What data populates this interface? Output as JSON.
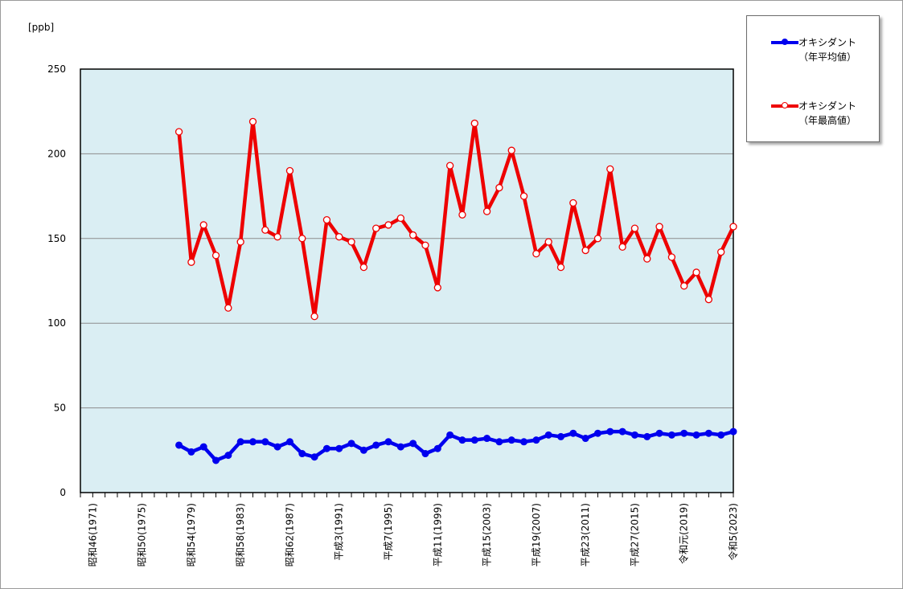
{
  "chart_data": {
    "type": "line",
    "unit_label": "[ppb]",
    "ylim": [
      0,
      250
    ],
    "y_ticks": [
      "0",
      "50",
      "100",
      "150",
      "200",
      "250"
    ],
    "grid": "horizontal",
    "legend_position": "right",
    "x_start_year": 1971,
    "x_end_year": 2023,
    "x_tick_labels": [
      {
        "year": 1971,
        "label": "昭和46(1971)"
      },
      {
        "year": 1975,
        "label": "昭和50(1975)"
      },
      {
        "year": 1979,
        "label": "昭和54(1979)"
      },
      {
        "year": 1983,
        "label": "昭和58(1983)"
      },
      {
        "year": 1987,
        "label": "昭和62(1987)"
      },
      {
        "year": 1991,
        "label": "平成3(1991)"
      },
      {
        "year": 1995,
        "label": "平成7(1995)"
      },
      {
        "year": 1999,
        "label": "平成11(1999)"
      },
      {
        "year": 2003,
        "label": "平成15(2003)"
      },
      {
        "year": 2007,
        "label": "平成19(2007)"
      },
      {
        "year": 2011,
        "label": "平成23(2011)"
      },
      {
        "year": 2015,
        "label": "平成27(2015)"
      },
      {
        "year": 2019,
        "label": "令和元(2019)"
      },
      {
        "year": 2023,
        "label": "令和5(2023)"
      }
    ],
    "series": [
      {
        "name": "オキシダント\n（年平均値）",
        "color": "#0000ee",
        "marker": "filled",
        "x": [
          1978,
          1979,
          1980,
          1981,
          1982,
          1983,
          1984,
          1985,
          1986,
          1987,
          1988,
          1989,
          1990,
          1991,
          1992,
          1993,
          1994,
          1995,
          1996,
          1997,
          1998,
          1999,
          2000,
          2001,
          2002,
          2003,
          2004,
          2005,
          2006,
          2007,
          2008,
          2009,
          2010,
          2011,
          2012,
          2013,
          2014,
          2015,
          2016,
          2017,
          2018,
          2019,
          2020,
          2021,
          2022,
          2023
        ],
        "values": [
          28,
          24,
          27,
          19,
          22,
          30,
          30,
          30,
          27,
          30,
          23,
          21,
          26,
          26,
          29,
          25,
          28,
          30,
          27,
          29,
          23,
          26,
          34,
          31,
          31,
          32,
          30,
          31,
          30,
          31,
          34,
          33,
          35,
          32,
          35,
          36,
          36,
          34,
          33,
          35,
          34,
          35,
          34,
          35,
          34,
          36
        ]
      },
      {
        "name": "オキシダント\n（年最高値）",
        "color": "#ee0000",
        "marker": "hollow",
        "x": [
          1978,
          1979,
          1980,
          1981,
          1982,
          1983,
          1984,
          1985,
          1986,
          1987,
          1988,
          1989,
          1990,
          1991,
          1992,
          1993,
          1994,
          1995,
          1996,
          1997,
          1998,
          1999,
          2000,
          2001,
          2002,
          2003,
          2004,
          2005,
          2006,
          2007,
          2008,
          2009,
          2010,
          2011,
          2012,
          2013,
          2014,
          2015,
          2016,
          2017,
          2018,
          2019,
          2020,
          2021,
          2022,
          2023
        ],
        "values": [
          213,
          136,
          158,
          140,
          109,
          148,
          219,
          155,
          151,
          190,
          150,
          104,
          161,
          151,
          148,
          133,
          156,
          158,
          162,
          152,
          146,
          121,
          193,
          164,
          218,
          166,
          180,
          202,
          175,
          141,
          148,
          133,
          171,
          143,
          150,
          191,
          145,
          156,
          138,
          157,
          139,
          122,
          130,
          114,
          142,
          157
        ]
      }
    ]
  }
}
